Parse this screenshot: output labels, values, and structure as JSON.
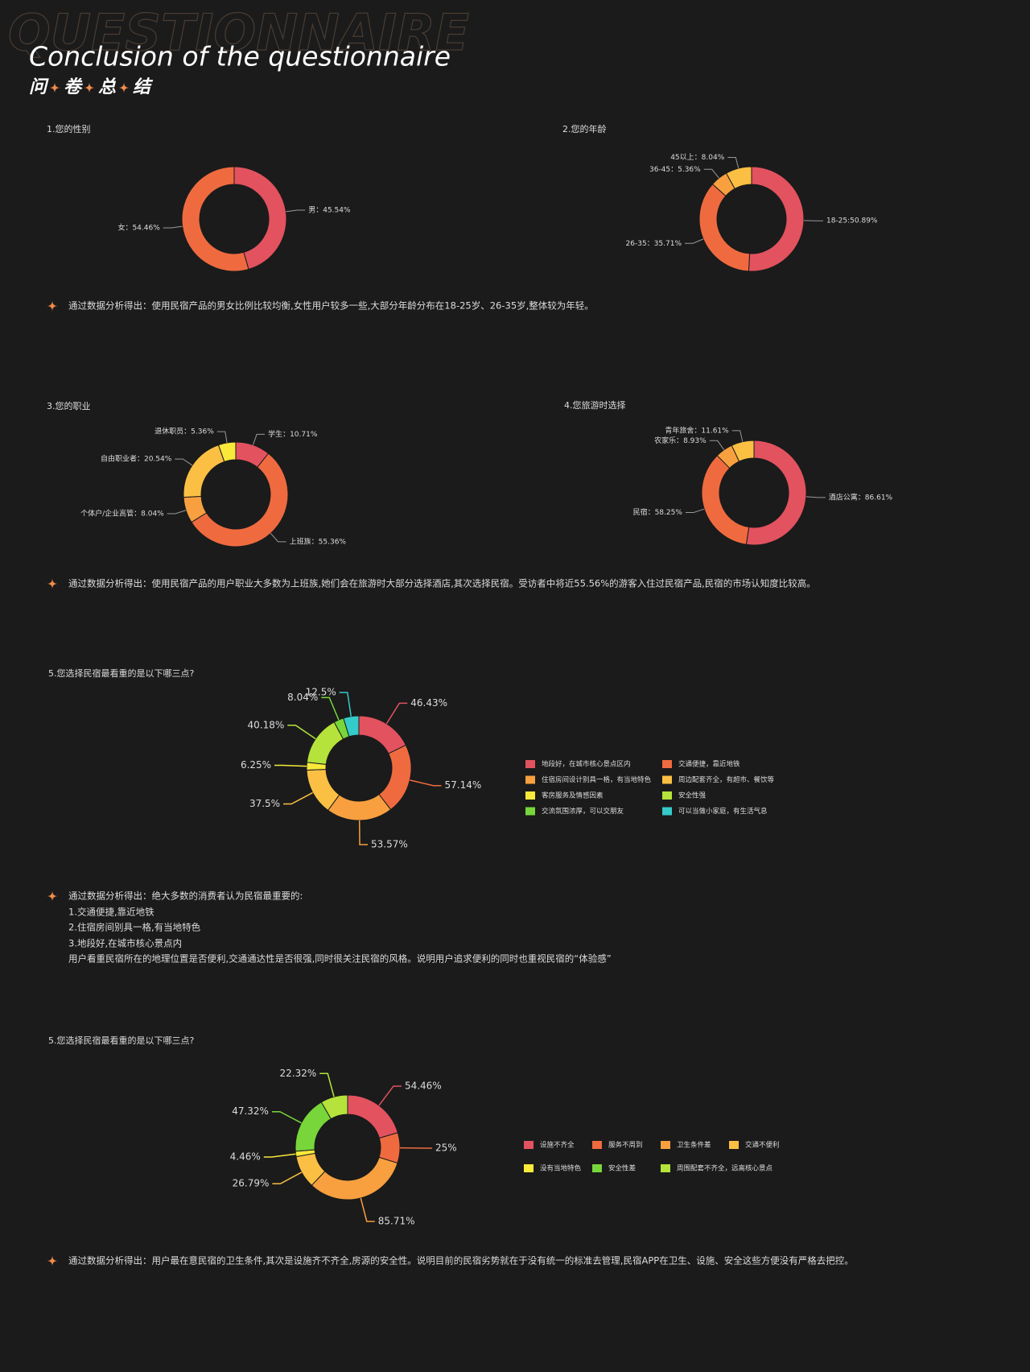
{
  "header": {
    "watermark": "QUESTIONNAIRE",
    "title": "Conclusion of the questionnaire",
    "subtitle": [
      "问",
      "卷",
      "总",
      "结"
    ]
  },
  "chart_data": [
    {
      "type": "pie",
      "title": "1.您的性别",
      "values": [
        45.54,
        54.46
      ],
      "value_labels": [
        "男：45.54%",
        "女：54.46%"
      ],
      "colors": [
        "#e3525f",
        "#ef6b3f"
      ]
    },
    {
      "type": "pie",
      "title": "2.您的年龄",
      "values": [
        50.89,
        35.71,
        5.36,
        8.04
      ],
      "value_labels": [
        "18-25:50.89%",
        "26-35：35.71%",
        "36-45：5.36%",
        "45以上：8.04%"
      ],
      "colors": [
        "#e3525f",
        "#ef6b3f",
        "#f8a03f",
        "#fbc043"
      ]
    },
    {
      "type": "pie",
      "title": "3.您的职业",
      "values": [
        10.71,
        55.36,
        8.04,
        20.54,
        5.36
      ],
      "value_labels": [
        "学生：10.71%",
        "上班族：55.36%",
        "个体户/企业高管：8.04%",
        "自由职业者：20.54%",
        "退休职员：5.36%"
      ],
      "colors": [
        "#e3525f",
        "#ef6b3f",
        "#f8a03f",
        "#fbc043",
        "#f8e93a"
      ]
    },
    {
      "type": "pie",
      "title": "4.您旅游时选择",
      "values": [
        86.61,
        58.25,
        8.93,
        11.61
      ],
      "value_labels": [
        "酒店公寓：86.61%",
        "民宿：58.25%",
        "农家乐：8.93%",
        "青年旅舍：11.61%"
      ],
      "colors": [
        "#e3525f",
        "#ef6b3f",
        "#f8a03f",
        "#fbc043"
      ]
    },
    {
      "type": "pie",
      "title": "5.您选择民宿最看重的是以下哪三点?",
      "categories": [
        "地段好，在城市核心景点区内",
        "交通便捷，靠近地铁",
        "住宿房间设计别具一格，有当地特色",
        "周边配套齐全，有超市、餐饮等",
        "客房服务及情感因素",
        "安全性强",
        "交流氛围浓厚，可以交朋友",
        "可以当做小家庭，有生活气息"
      ],
      "values": [
        46.43,
        57.14,
        53.57,
        37.5,
        6.25,
        40.18,
        8.04,
        12.5
      ],
      "value_labels": [
        "46.43%",
        "57.14%",
        "53.57%",
        "37.5%",
        "6.25%",
        "40.18%",
        "8.04%",
        "12.5%"
      ],
      "colors": [
        "#e3525f",
        "#ef6b3f",
        "#f8a03f",
        "#fbc043",
        "#f8e93a",
        "#b5e33b",
        "#78d63a",
        "#34cbc8"
      ]
    },
    {
      "type": "pie",
      "title": "5.您选择民宿最看重的是以下哪三点?",
      "categories": [
        "设施不齐全",
        "服务不周到",
        "卫生条件差",
        "交通不便利",
        "没有当地特色",
        "安全性差",
        "周围配套不齐全，远离核心景点"
      ],
      "values": [
        54.46,
        25,
        85.71,
        26.79,
        4.46,
        47.32,
        22.32
      ],
      "value_labels": [
        "54.46%",
        "25%",
        "85.71%",
        "26.79%",
        "4.46%",
        "47.32%",
        "22.32%"
      ],
      "colors": [
        "#e3525f",
        "#ef6b3f",
        "#f8a03f",
        "#fbc043",
        "#f8e93a",
        "#78d63a",
        "#b5e33b"
      ]
    }
  ],
  "notes": [
    [
      "通过数据分析得出：使用民宿产品的男女比例比较均衡,女性用户较多一些,大部分年龄分布在18-25岁、26-35岁,整体较为年轻。"
    ],
    [
      "通过数据分析得出：使用民宿产品的用户职业大多数为上班族,她们会在旅游时大部分选择酒店,其次选择民宿。受访者中将近55.56%的游客入住过民宿产品,民宿的市场认知度比较高。"
    ],
    [
      "通过数据分析得出：绝大多数的消费者认为民宿最重要的:",
      "1.交通便捷,靠近地铁",
      "2.住宿房间别具一格,有当地特色",
      "3.地段好,在城市核心景点内",
      "用户看重民宿所在的地理位置是否便利,交通通达性是否很强,同时很关注民宿的风格。说明用户追求便利的同时也重视民宿的“体验感”"
    ],
    [
      "通过数据分析得出：用户最在意民宿的卫生条件,其次是设施齐不齐全,房源的安全性。说明目前的民宿劣势就在于没有统一的标准去管理,民宿APP在卫生、设施、安全这些方便没有严格去把控。"
    ]
  ]
}
